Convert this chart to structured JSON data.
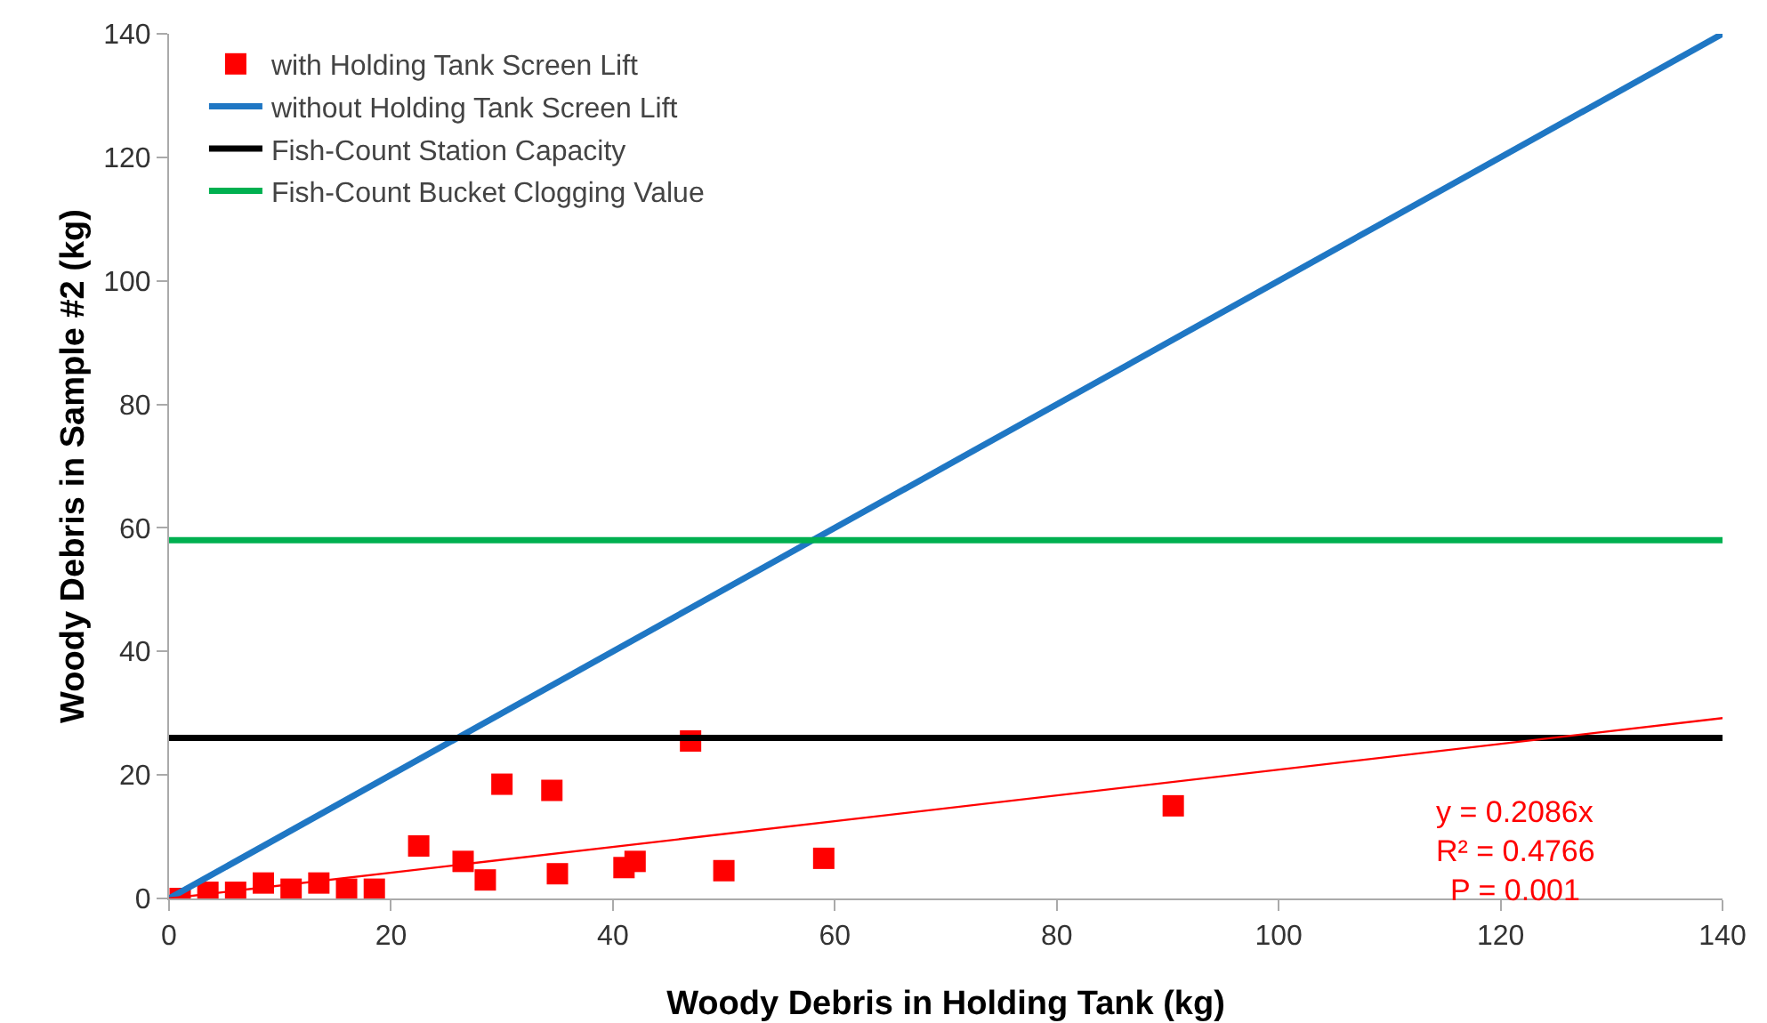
{
  "chart_data": {
    "type": "scatter",
    "xlabel": "Woody Debris in Holding Tank (kg)",
    "ylabel": "Woody Debris in Sample #2 (kg)",
    "xlim": [
      0,
      140
    ],
    "xticks": [
      0,
      20,
      40,
      60,
      80,
      100,
      120,
      140
    ],
    "ylim": [
      0,
      140
    ],
    "yticks": [
      0,
      20,
      40,
      60,
      80,
      100,
      120,
      140
    ],
    "grid": false,
    "legend": "top left",
    "series": [
      {
        "name": "with Holding Tank Screen Lift",
        "marker": "square",
        "color": "#ff0000",
        "x": [
          1,
          3.5,
          6,
          8.5,
          11,
          13.5,
          16,
          18.5,
          22.5,
          26.5,
          28.5,
          30,
          34.5,
          35,
          41,
          42,
          47,
          50,
          59,
          90.5
        ],
        "values": [
          0,
          1,
          1,
          2.5,
          1.5,
          2.5,
          1.5,
          1.5,
          8.5,
          6,
          3,
          18.5,
          17.5,
          4,
          5,
          6,
          25.5,
          4.5,
          6.5,
          15
        ]
      },
      {
        "name": "without Holding Tank Screen Lift",
        "type": "line",
        "color": "#1f77c4",
        "x": [
          0,
          140
        ],
        "values": [
          0,
          140
        ]
      },
      {
        "name": "Fish-Count Station Capacity",
        "type": "line",
        "color": "#000000",
        "x": [
          0,
          140
        ],
        "values": [
          26,
          26
        ]
      },
      {
        "name": "Fish-Count Bucket Clogging Value",
        "type": "line",
        "color": "#00b050",
        "x": [
          0,
          140
        ],
        "values": [
          58,
          58
        ]
      },
      {
        "type": "line",
        "color": "#ff0000",
        "x": [
          0,
          140
        ],
        "values": [
          0,
          29.2
        ]
      }
    ],
    "annotations": [
      "y = 0.2086x",
      "R² = 0.4766",
      "P = 0.001"
    ]
  }
}
